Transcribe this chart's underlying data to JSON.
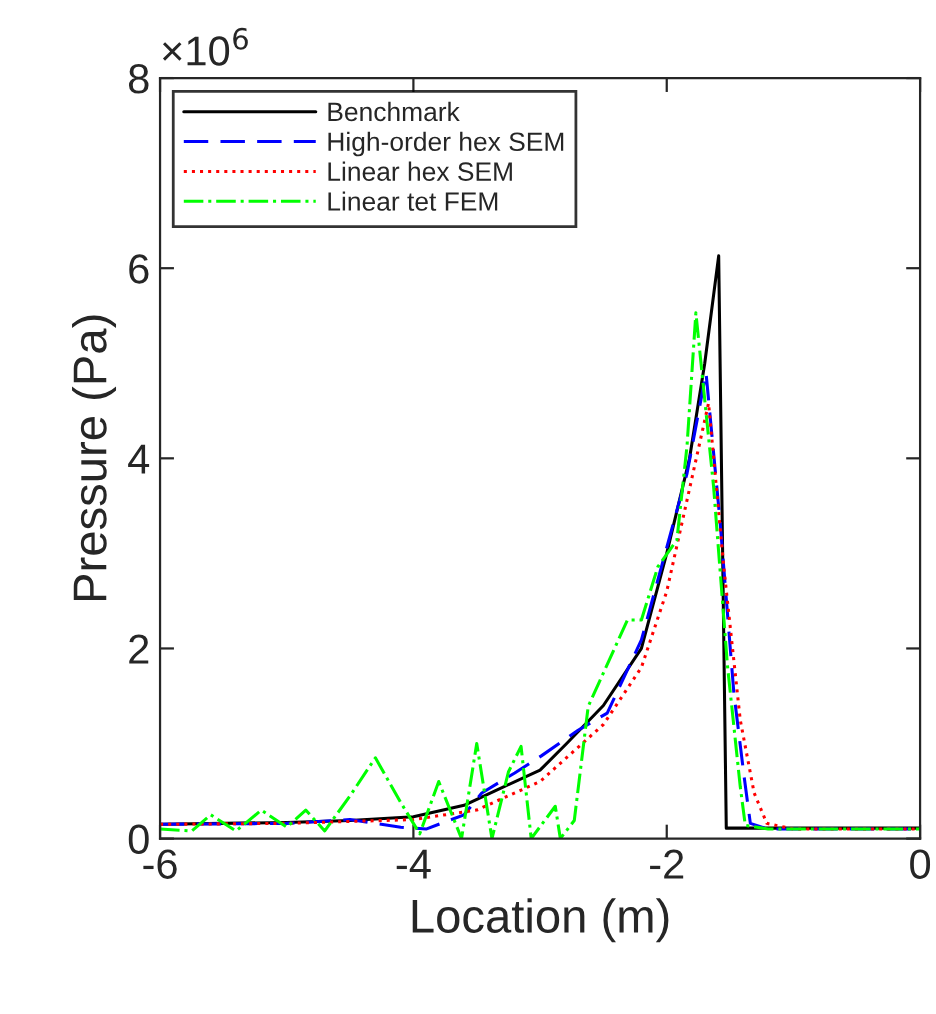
{
  "chart_data": {
    "type": "line",
    "xlabel": "Location (m)",
    "ylabel": "Pressure (Pa)",
    "xlim": [
      -6,
      0
    ],
    "xticks": [
      -6,
      -4,
      -2,
      0
    ],
    "ylim": [
      0,
      8
    ],
    "yticks": [
      0,
      2,
      4,
      6,
      8
    ],
    "annotations": [
      "×10$^{6}$"
    ],
    "grid": false,
    "legend": "top left",
    "series": [
      {
        "name": "Benchmark",
        "color": "#000000",
        "line_style": "solid",
        "x": [
          -6,
          -5,
          -4.5,
          -4,
          -3.6,
          -3.36,
          -3,
          -2.79,
          -2.5,
          -2.2,
          -2.0,
          -1.82,
          -1.7,
          -1.59,
          -1.53,
          0
        ],
        "values": [
          0.15,
          0.17,
          0.19,
          0.23,
          0.35,
          0.5,
          0.72,
          1.0,
          1.4,
          2.0,
          3.0,
          4.0,
          5.0,
          6.13,
          0.11,
          0.11
        ]
      },
      {
        "name": "High-order hex SEM",
        "color": "#0000ff",
        "line_style": "dashed",
        "x": [
          -6,
          -5,
          -4.5,
          -4.1,
          -3.9,
          -3.6,
          -3.46,
          -3.2,
          -2.99,
          -2.7,
          -2.47,
          -2.2,
          -1.84,
          -1.69,
          -1.58,
          -1.47,
          -1.39,
          -1.34,
          -1.2,
          0
        ],
        "values": [
          0.15,
          0.16,
          0.2,
          0.12,
          0.1,
          0.25,
          0.48,
          0.69,
          0.87,
          1.14,
          1.32,
          2.09,
          3.84,
          4.9,
          3.35,
          1.53,
          0.66,
          0.16,
          0.1,
          0.1
        ]
      },
      {
        "name": "Linear hex SEM",
        "color": "#ff0000",
        "line_style": "dotted",
        "x": [
          -6,
          -5,
          -4.5,
          -4,
          -3.5,
          -3,
          -2.5,
          -2.2,
          -2,
          -1.8,
          -1.67,
          -1.55,
          -1.42,
          -1.31,
          -1.21,
          -1.0,
          0
        ],
        "values": [
          0.15,
          0.16,
          0.18,
          0.2,
          0.3,
          0.6,
          1.2,
          1.8,
          2.6,
          3.8,
          4.58,
          2.86,
          1.25,
          0.48,
          0.16,
          0.1,
          0.1
        ]
      },
      {
        "name": "Linear tet FEM",
        "color": "#00ff00",
        "line_style": "dashdot",
        "x": [
          -6,
          -5.75,
          -5.6,
          -5.4,
          -5.2,
          -5.0,
          -4.85,
          -4.7,
          -4.5,
          -4.3,
          -4.1,
          -3.95,
          -3.8,
          -3.62,
          -3.5,
          -3.38,
          -3.25,
          -3.15,
          -3.07,
          -2.88,
          -2.84,
          -2.73,
          -2.62,
          -2.31,
          -2.2,
          -2.07,
          -1.92,
          -1.84,
          -1.77,
          -1.63,
          -1.52,
          -1.42,
          -1.38,
          -1.2,
          0
        ],
        "values": [
          0.1,
          0.08,
          0.25,
          0.08,
          0.3,
          0.12,
          0.3,
          0.08,
          0.45,
          0.85,
          0.38,
          0.05,
          0.6,
          0.0,
          1.0,
          0.0,
          0.7,
          0.97,
          0.0,
          0.34,
          0.0,
          0.19,
          1.39,
          2.3,
          2.3,
          2.86,
          3.14,
          4.13,
          5.53,
          3.7,
          1.81,
          0.55,
          0.14,
          0.1,
          0.1
        ]
      }
    ]
  }
}
